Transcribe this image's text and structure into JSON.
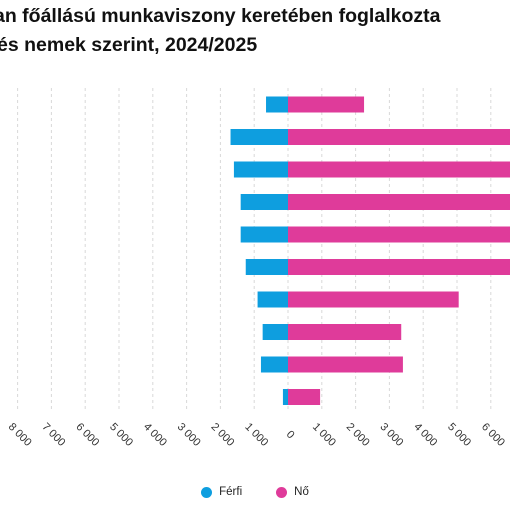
{
  "title": {
    "line1": "an főállású munkaviszony keretében foglalkozta",
    "line2": "és nemek szerint, 2024/2025"
  },
  "colors": {
    "ferfi": "#0e9edf",
    "no": "#df3b9a",
    "grid": "#d8d8d8"
  },
  "legend": {
    "ferfi": "Férfi",
    "no": "Nő"
  },
  "chart_data": {
    "type": "bar",
    "orientation": "horizontal-diverging",
    "title": "an főállású munkaviszony keretében foglalkozta és nemek szerint, 2024/2025",
    "x_tick_labels": [
      "8 000",
      "7 000",
      "6 000",
      "5 000",
      "4 000",
      "3 000",
      "2 000",
      "1 000",
      "0",
      "1 000",
      "2 000",
      "3 000",
      "4 000",
      "5 000",
      "6 000",
      "7"
    ],
    "xlim": [
      -8300,
      6700
    ],
    "grid": true,
    "legend_position": "bottom",
    "series": [
      {
        "name": "Férfi",
        "values": [
          -650,
          -1700,
          -1600,
          -1400,
          -1400,
          -1250,
          -900,
          -750,
          -800,
          -150
        ]
      },
      {
        "name": "Nő",
        "values": [
          2250,
          6700,
          6700,
          6700,
          6700,
          6700,
          5050,
          3350,
          3400,
          950
        ]
      }
    ]
  }
}
